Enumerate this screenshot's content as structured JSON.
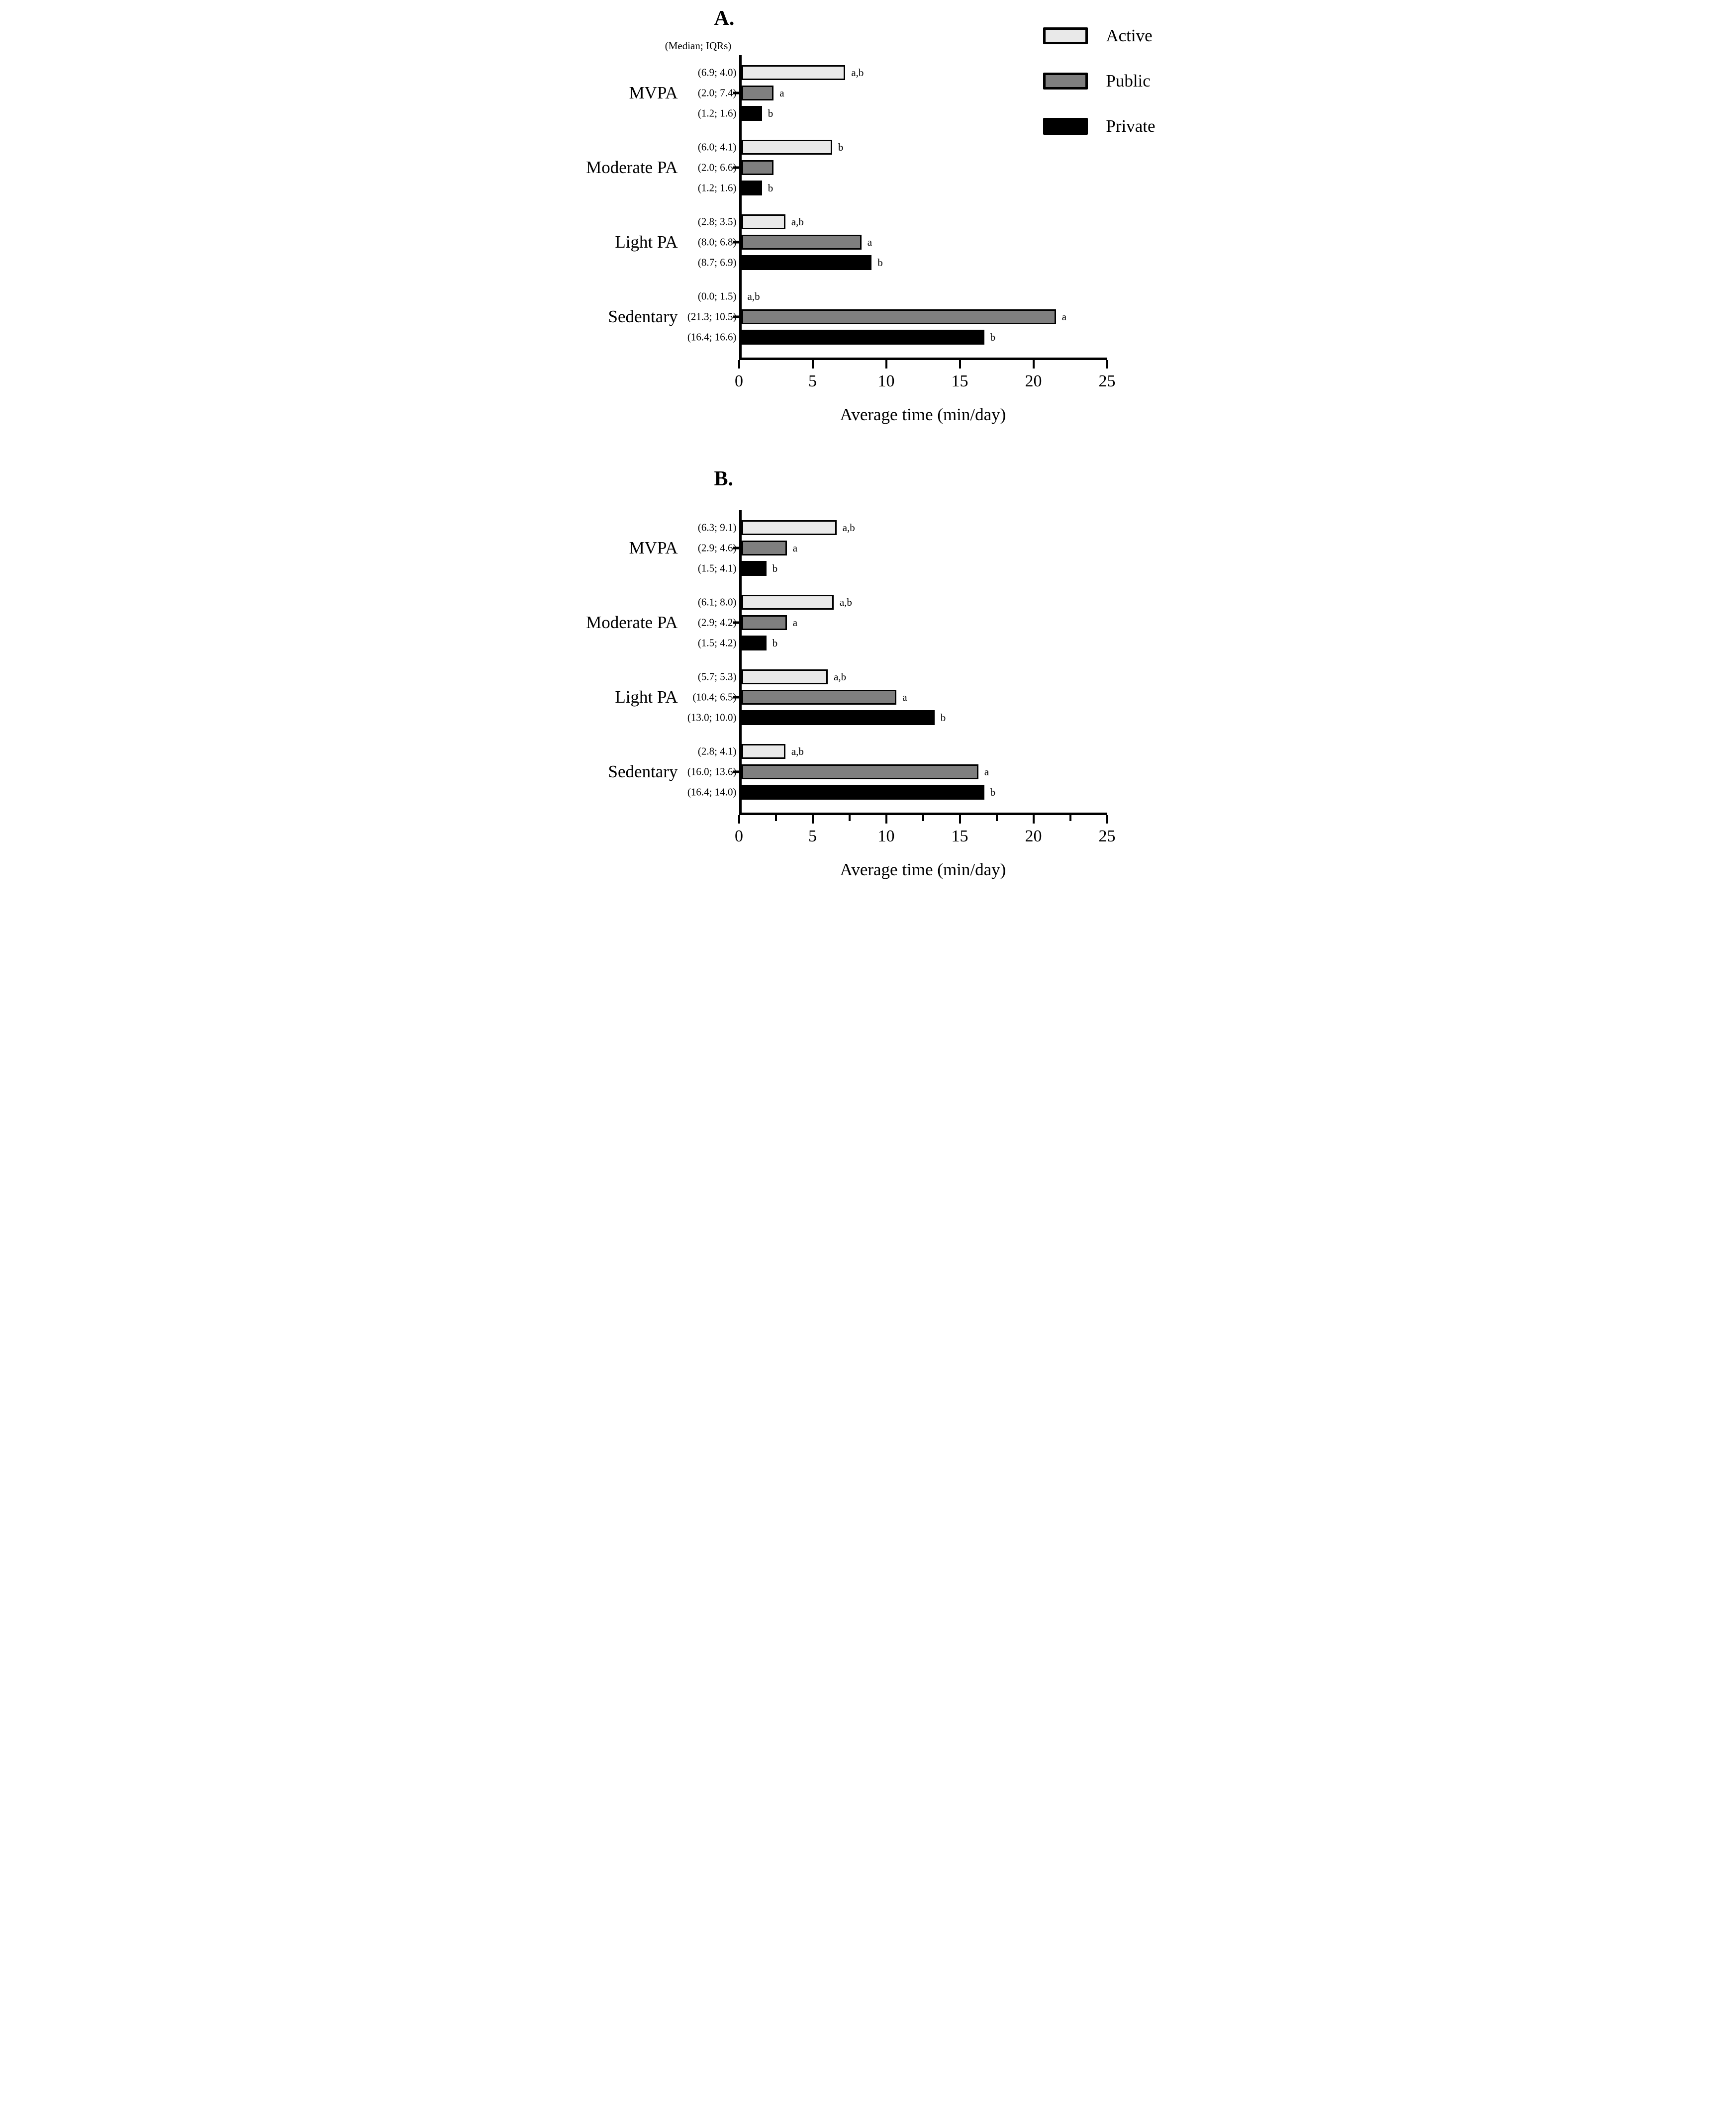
{
  "series_colors": {
    "Active": "#e9e9e9",
    "Public": "#7f7f7f",
    "Private": "#000000"
  },
  "axis_color": "#000000",
  "chart_data": [
    {
      "panel": "A.",
      "subtitle": "(Median; IQRs)",
      "type": "bar",
      "orientation": "horizontal",
      "xlabel": "Average time (min/day)",
      "xlim": [
        0,
        25
      ],
      "xticks": [
        0,
        5,
        10,
        15,
        20,
        25
      ],
      "minor_ticks": [],
      "grid": false,
      "legend_position": "top-right",
      "legend": [
        {
          "label": "Active",
          "color": "#e9e9e9"
        },
        {
          "label": "Public",
          "color": "#7f7f7f"
        },
        {
          "label": "Private",
          "color": "#000000"
        }
      ],
      "groups": [
        {
          "category": "MVPA",
          "bars": [
            {
              "series": "Active",
              "median": 6.9,
              "iqr": 4.0,
              "label": "(6.9; 4.0)",
              "sig": "a,b"
            },
            {
              "series": "Public",
              "median": 2.0,
              "iqr": 7.4,
              "label": "(2.0; 7.4)",
              "sig": "a"
            },
            {
              "series": "Private",
              "median": 1.2,
              "iqr": 1.6,
              "label": "(1.2; 1.6)",
              "sig": "b"
            }
          ]
        },
        {
          "category": "Moderate PA",
          "bars": [
            {
              "series": "Active",
              "median": 6.0,
              "iqr": 4.1,
              "label": "(6.0; 4.1)",
              "sig": "b"
            },
            {
              "series": "Public",
              "median": 2.0,
              "iqr": 6.6,
              "label": "(2.0; 6.6)",
              "sig": ""
            },
            {
              "series": "Private",
              "median": 1.2,
              "iqr": 1.6,
              "label": "(1.2; 1.6)",
              "sig": "b"
            }
          ]
        },
        {
          "category": "Light PA",
          "bars": [
            {
              "series": "Active",
              "median": 2.8,
              "iqr": 3.5,
              "label": "(2.8; 3.5)",
              "sig": "a,b"
            },
            {
              "series": "Public",
              "median": 8.0,
              "iqr": 6.8,
              "label": "(8.0; 6.8)",
              "sig": "a"
            },
            {
              "series": "Private",
              "median": 8.7,
              "iqr": 6.9,
              "label": "(8.7; 6.9)",
              "sig": "b"
            }
          ]
        },
        {
          "category": "Sedentary",
          "bars": [
            {
              "series": "Active",
              "median": 0.0,
              "iqr": 1.5,
              "label": "(0.0; 1.5)",
              "sig": "a,b"
            },
            {
              "series": "Public",
              "median": 21.3,
              "iqr": 10.5,
              "label": "(21.3; 10.5)",
              "sig": "a"
            },
            {
              "series": "Private",
              "median": 16.4,
              "iqr": 16.6,
              "label": "(16.4; 16.6)",
              "sig": "b"
            }
          ]
        }
      ]
    },
    {
      "panel": "B.",
      "subtitle": "",
      "type": "bar",
      "orientation": "horizontal",
      "xlabel": "Average time (min/day)",
      "xlim": [
        0,
        25
      ],
      "xticks": [
        0,
        5,
        10,
        15,
        20,
        25
      ],
      "minor_ticks": [
        2.5,
        7.5,
        12.5,
        17.5,
        22.5
      ],
      "grid": false,
      "legend": [],
      "groups": [
        {
          "category": "MVPA",
          "bars": [
            {
              "series": "Active",
              "median": 6.3,
              "iqr": 9.1,
              "label": "(6.3; 9.1)",
              "sig": "a,b"
            },
            {
              "series": "Public",
              "median": 2.9,
              "iqr": 4.6,
              "label": "(2.9; 4.6)",
              "sig": "a"
            },
            {
              "series": "Private",
              "median": 1.5,
              "iqr": 4.1,
              "label": "(1.5; 4.1)",
              "sig": "b"
            }
          ]
        },
        {
          "category": "Moderate PA",
          "bars": [
            {
              "series": "Active",
              "median": 6.1,
              "iqr": 8.0,
              "label": "(6.1; 8.0)",
              "sig": "a,b"
            },
            {
              "series": "Public",
              "median": 2.9,
              "iqr": 4.2,
              "label": "(2.9; 4.2)",
              "sig": "a"
            },
            {
              "series": "Private",
              "median": 1.5,
              "iqr": 4.2,
              "label": "(1.5; 4.2)",
              "sig": "b"
            }
          ]
        },
        {
          "category": "Light PA",
          "bars": [
            {
              "series": "Active",
              "median": 5.7,
              "iqr": 5.3,
              "label": "(5.7; 5.3)",
              "sig": "a,b"
            },
            {
              "series": "Public",
              "median": 10.4,
              "iqr": 6.5,
              "label": "(10.4; 6.5)",
              "sig": "a"
            },
            {
              "series": "Private",
              "median": 13.0,
              "iqr": 10.0,
              "label": "(13.0; 10.0)",
              "sig": "b"
            }
          ]
        },
        {
          "category": "Sedentary",
          "bars": [
            {
              "series": "Active",
              "median": 2.8,
              "iqr": 4.1,
              "label": "(2.8; 4.1)",
              "sig": "a,b"
            },
            {
              "series": "Public",
              "median": 16.0,
              "iqr": 13.6,
              "label": "(16.0; 13.6)",
              "sig": "a"
            },
            {
              "series": "Private",
              "median": 16.4,
              "iqr": 14.0,
              "label": "(16.4; 14.0)",
              "sig": "b"
            }
          ]
        }
      ]
    }
  ]
}
